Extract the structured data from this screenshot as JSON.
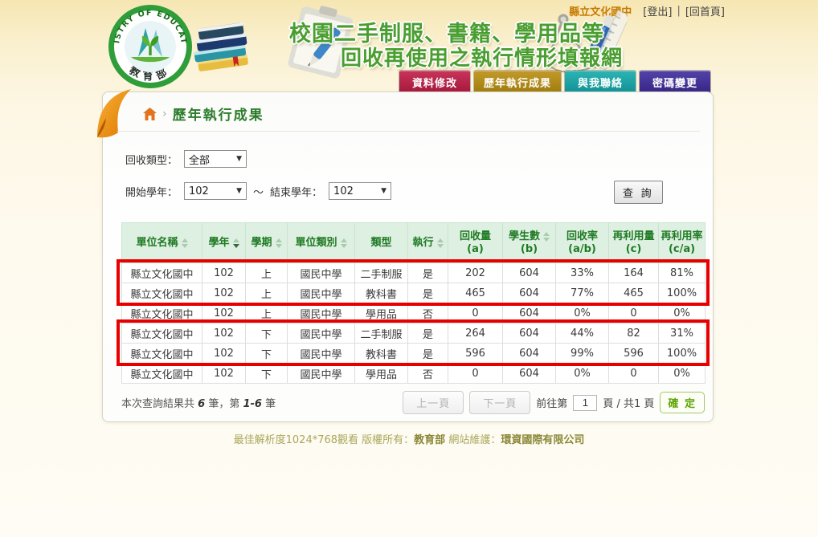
{
  "header": {
    "school_name": "縣立文化國中",
    "logout_label": "[登出]",
    "separator": "|",
    "home_link_label": "[回首頁]",
    "logo": {
      "ring_text": "MINISTRY OF EDUCATION",
      "ministry_label": "教 育 部"
    },
    "title_line1": "校園二手制服、書籍、學用品等",
    "title_line2": "回收再使用之執行情形填報網",
    "nav_tabs": [
      {
        "name": "data-edit",
        "label": "資料修改",
        "color_top": "#c9345a",
        "color": "#a3153a"
      },
      {
        "name": "history-results",
        "label": "歷年執行成果",
        "color_top": "#c29a2a",
        "color": "#9d7a0c"
      },
      {
        "name": "contact-us",
        "label": "與我聯絡",
        "color_top": "#2cb4b4",
        "color": "#0f8f93"
      },
      {
        "name": "password-change",
        "label": "密碼變更",
        "color_top": "#5343a8",
        "color": "#352383"
      }
    ]
  },
  "breadcrumb": {
    "separator": "›",
    "page_title": "歷年執行成果"
  },
  "filters": {
    "recycle_type_label": "回收類型：",
    "recycle_type_value": "全部",
    "start_year_label": "開始學年：",
    "start_year_value": "102",
    "range_separator": "～",
    "end_year_label": "結束學年：",
    "end_year_value": "102",
    "search_button_label": "查 詢"
  },
  "table": {
    "columns": [
      {
        "label": "單位名稱",
        "sub": "",
        "sort": "both"
      },
      {
        "label": "學年",
        "sub": "",
        "sort": "desc"
      },
      {
        "label": "學期",
        "sub": "",
        "sort": "both"
      },
      {
        "label": "單位類別",
        "sub": "",
        "sort": "both"
      },
      {
        "label": "類型",
        "sub": "",
        "sort": "none"
      },
      {
        "label": "執行",
        "sub": "",
        "sort": "both"
      },
      {
        "label": "回收量",
        "sub": "(a)",
        "sort": "none"
      },
      {
        "label": "學生數",
        "sub": "(b)",
        "sort": "both"
      },
      {
        "label": "回收率",
        "sub": "(a/b)",
        "sort": "none"
      },
      {
        "label": "再利用量",
        "sub": "(c)",
        "sort": "none"
      },
      {
        "label": "再利用率",
        "sub": "(c/a)",
        "sort": "none"
      }
    ],
    "rows": [
      [
        "縣立文化國中",
        "102",
        "上",
        "國民中學",
        "二手制服",
        "是",
        "202",
        "604",
        "33%",
        "164",
        "81%"
      ],
      [
        "縣立文化國中",
        "102",
        "上",
        "國民中學",
        "教科書",
        "是",
        "465",
        "604",
        "77%",
        "465",
        "100%"
      ],
      [
        "縣立文化國中",
        "102",
        "上",
        "國民中學",
        "學用品",
        "否",
        "0",
        "604",
        "0%",
        "0",
        "0%"
      ],
      [
        "縣立文化國中",
        "102",
        "下",
        "國民中學",
        "二手制服",
        "是",
        "264",
        "604",
        "44%",
        "82",
        "31%"
      ],
      [
        "縣立文化國中",
        "102",
        "下",
        "國民中學",
        "教科書",
        "是",
        "596",
        "604",
        "99%",
        "596",
        "100%"
      ],
      [
        "縣立文化國中",
        "102",
        "下",
        "國民中學",
        "學用品",
        "否",
        "0",
        "604",
        "0%",
        "0",
        "0%"
      ]
    ],
    "highlight_color": "#e80000",
    "highlight_groups": [
      {
        "start": 0,
        "end": 1
      },
      {
        "start": 3,
        "end": 4
      }
    ]
  },
  "pagination": {
    "summary_prefix": "本次查詢結果共 ",
    "summary_count": "6",
    "summary_mid": " 筆，第 ",
    "summary_range": "1-6",
    "summary_suffix": " 筆",
    "prev_label": "上一頁",
    "next_label": "下一頁",
    "goto_prefix": "前往第",
    "page_value": "1",
    "goto_suffix": "頁 / 共1 頁",
    "confirm_label": "確 定"
  },
  "footer": {
    "text_prefix": "最佳解析度1024*768觀看 版權所有：",
    "owner": "教育部",
    "maintain_label": " 網站維護：",
    "maintainer": "環資國際有限公司"
  }
}
